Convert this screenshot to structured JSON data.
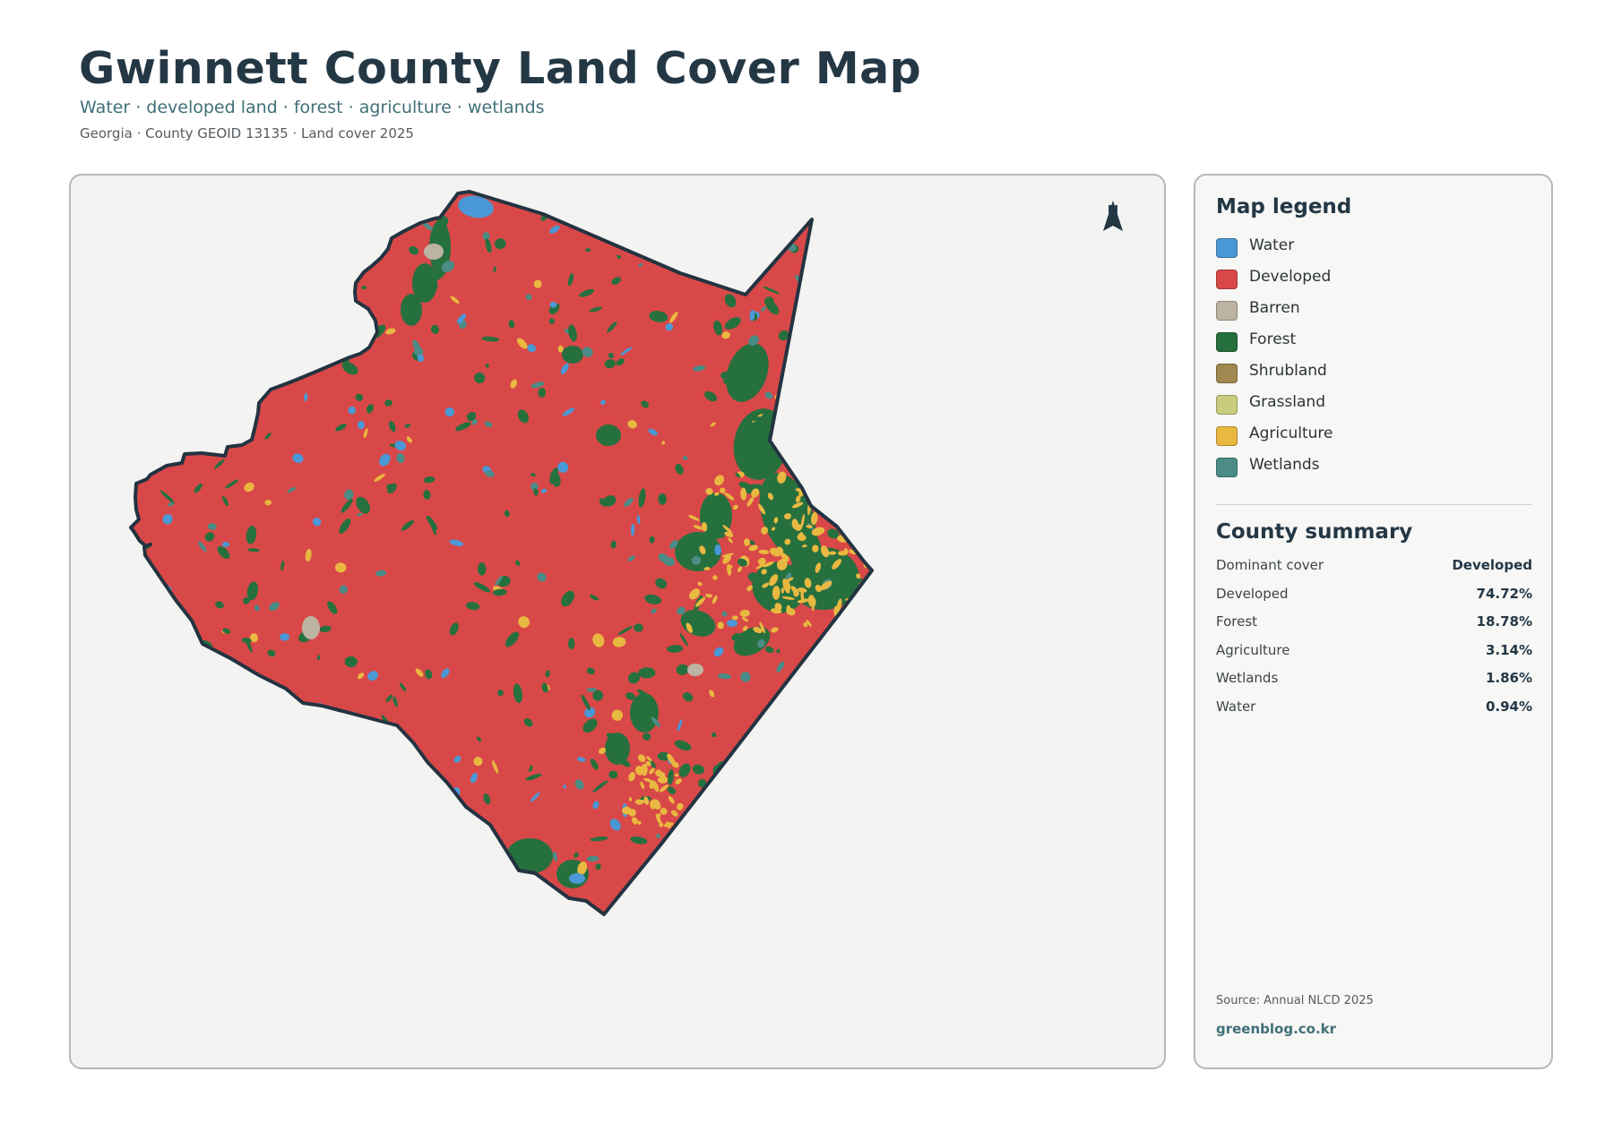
{
  "header": {
    "title": "Gwinnett County Land Cover Map",
    "subtitle": "Water · developed land · forest · agriculture · wetlands",
    "meta": "Georgia · County GEOID 13135 · Land cover 2025"
  },
  "map": {
    "north_label": "N",
    "colors": {
      "water": "#4a98d6",
      "developed": "#d94848",
      "barren": "#bdb3a2",
      "forest": "#26703e",
      "agriculture": "#e9b840",
      "wetlands": "#4b8c87",
      "outline": "#233341",
      "background": "#f3f3f2"
    }
  },
  "legend": {
    "title": "Map legend",
    "items": [
      {
        "label": "Water",
        "color": "#4a98d6"
      },
      {
        "label": "Developed",
        "color": "#d94848"
      },
      {
        "label": "Barren",
        "color": "#bdb3a2"
      },
      {
        "label": "Forest",
        "color": "#26703e"
      },
      {
        "label": "Shrubland",
        "color": "#a08850"
      },
      {
        "label": "Grassland",
        "color": "#c8cc7c"
      },
      {
        "label": "Agriculture",
        "color": "#e9b840"
      },
      {
        "label": "Wetlands",
        "color": "#4b8c87"
      }
    ]
  },
  "summary": {
    "title": "County summary",
    "rows": [
      {
        "label": "Dominant cover",
        "value": "Developed"
      },
      {
        "label": "Developed",
        "value": "74.72%"
      },
      {
        "label": "Forest",
        "value": "18.78%"
      },
      {
        "label": "Agriculture",
        "value": "3.14%"
      },
      {
        "label": "Wetlands",
        "value": "1.86%"
      },
      {
        "label": "Water",
        "value": "0.94%"
      }
    ]
  },
  "footer": {
    "source": "Source: Annual NLCD 2025",
    "site": "greenblog.co.kr"
  }
}
